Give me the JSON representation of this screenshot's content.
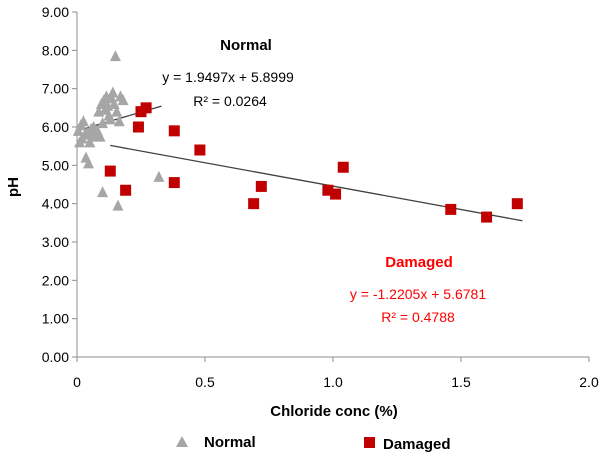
{
  "chart_data": {
    "type": "scatter",
    "xlabel": "Chloride conc (%)",
    "ylabel": "pH",
    "xlim": [
      0,
      2.0
    ],
    "ylim": [
      0,
      9.0
    ],
    "x_ticks": [
      "0",
      "0.5",
      "1.0",
      "1.5",
      "2.0"
    ],
    "y_ticks": [
      "0.00",
      "1.00",
      "2.00",
      "3.00",
      "4.00",
      "5.00",
      "6.00",
      "7.00",
      "8.00",
      "9.00"
    ],
    "grid": false,
    "legend_position": "bottom",
    "series": [
      {
        "name": "Normal",
        "marker": "triangle",
        "color": "#a6a6a6",
        "label_color": "#000000",
        "points": [
          [
            0.005,
            5.9
          ],
          [
            0.01,
            5.6
          ],
          [
            0.015,
            6.05
          ],
          [
            0.02,
            5.7
          ],
          [
            0.025,
            6.15
          ],
          [
            0.03,
            5.8
          ],
          [
            0.035,
            5.2
          ],
          [
            0.04,
            5.85
          ],
          [
            0.045,
            5.05
          ],
          [
            0.05,
            5.6
          ],
          [
            0.055,
            5.95
          ],
          [
            0.06,
            5.75
          ],
          [
            0.065,
            6.0
          ],
          [
            0.07,
            5.8
          ],
          [
            0.08,
            5.9
          ],
          [
            0.085,
            6.4
          ],
          [
            0.09,
            5.75
          ],
          [
            0.095,
            6.6
          ],
          [
            0.1,
            6.1
          ],
          [
            0.1,
            4.3
          ],
          [
            0.105,
            6.7
          ],
          [
            0.11,
            6.45
          ],
          [
            0.115,
            6.8
          ],
          [
            0.12,
            6.55
          ],
          [
            0.125,
            6.3
          ],
          [
            0.13,
            6.2
          ],
          [
            0.135,
            6.75
          ],
          [
            0.14,
            6.9
          ],
          [
            0.145,
            6.6
          ],
          [
            0.15,
            7.85
          ],
          [
            0.155,
            6.4
          ],
          [
            0.16,
            3.95
          ],
          [
            0.165,
            6.15
          ],
          [
            0.17,
            6.8
          ],
          [
            0.18,
            6.7
          ],
          [
            0.32,
            4.7
          ]
        ],
        "trendline": {
          "equation": "y = 1.9497x + 5.8999",
          "r2": "R² = 0.0264",
          "slope": 1.9497,
          "intercept": 5.8999,
          "x_range": [
            0,
            0.33
          ]
        }
      },
      {
        "name": "Damaged",
        "marker": "square",
        "color": "#c00000",
        "label_color": "#ff0000",
        "points": [
          [
            0.13,
            4.85
          ],
          [
            0.19,
            4.35
          ],
          [
            0.24,
            6.0
          ],
          [
            0.25,
            6.4
          ],
          [
            0.27,
            6.5
          ],
          [
            0.38,
            5.9
          ],
          [
            0.38,
            4.55
          ],
          [
            0.48,
            5.4
          ],
          [
            0.69,
            4.0
          ],
          [
            0.72,
            4.45
          ],
          [
            0.98,
            4.35
          ],
          [
            1.01,
            4.25
          ],
          [
            1.04,
            4.95
          ],
          [
            1.46,
            3.85
          ],
          [
            1.6,
            3.65
          ],
          [
            1.72,
            4.0
          ]
        ],
        "trendline": {
          "equation": "y = -1.2205x + 5.6781",
          "r2": "R² = 0.4788",
          "slope": -1.2205,
          "intercept": 5.6781,
          "x_range": [
            0.13,
            1.74
          ]
        }
      }
    ]
  }
}
